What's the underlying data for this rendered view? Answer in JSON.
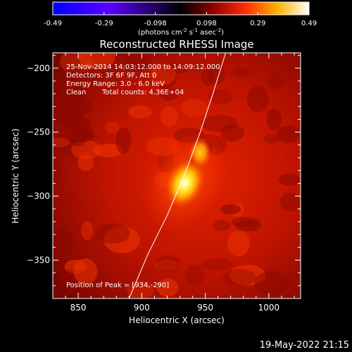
{
  "colorbar": {
    "ticks": [
      "-0.49",
      "-0.29",
      "-0.098",
      "0.098",
      "0.29",
      "0.49"
    ],
    "units_prefix": "(photons cm",
    "units_exp1": "-2",
    "units_mid": " s",
    "units_exp2": "-1",
    "units_mid2": " asec",
    "units_exp3": "-2",
    "units_suffix": ")",
    "colors": [
      "#0000ff",
      "#000000",
      "#800000",
      "#ff3000",
      "#ffb000",
      "#ffffff"
    ]
  },
  "chart_data": {
    "type": "heatmap",
    "title": "Reconstructed RHESSI Image",
    "xlabel": "Heliocentric X (arcsec)",
    "ylabel": "Heliocentric Y (arcsec)",
    "xlim": [
      830,
      1025
    ],
    "ylim": [
      -380,
      -188
    ],
    "x_ticks": [
      850,
      900,
      950,
      1000
    ],
    "y_ticks": [
      -200,
      -250,
      -300,
      -350
    ],
    "x_tick_labels": [
      "850",
      "900",
      "950",
      "1000"
    ],
    "y_tick_labels": [
      "-200",
      "-250",
      "-300",
      "-350"
    ],
    "value_range": [
      -0.49,
      0.49
    ],
    "peak": {
      "x": 934,
      "y": -290
    },
    "secondary_source": {
      "x": 946,
      "y": -266
    },
    "limb_curve": [
      [
        890,
        -380
      ],
      [
        905,
        -345
      ],
      [
        920,
        -315
      ],
      [
        935,
        -280
      ],
      [
        946,
        -250
      ],
      [
        956,
        -220
      ],
      [
        966,
        -188
      ]
    ]
  },
  "annotations": {
    "time_range": "25-Nov-2014 14:03:12.000 to 14:09:12.000",
    "detectors": "Detectors: 3F 6F 9F, Att 0",
    "energy": "Energy Range: 3.0 - 6.0 keV",
    "clean": "Clean",
    "total_counts": "Total counts: 4.36E+04",
    "peak_position": "Position of Peak = [934,-290]"
  },
  "footer_date": "19-May-2022 21:15"
}
